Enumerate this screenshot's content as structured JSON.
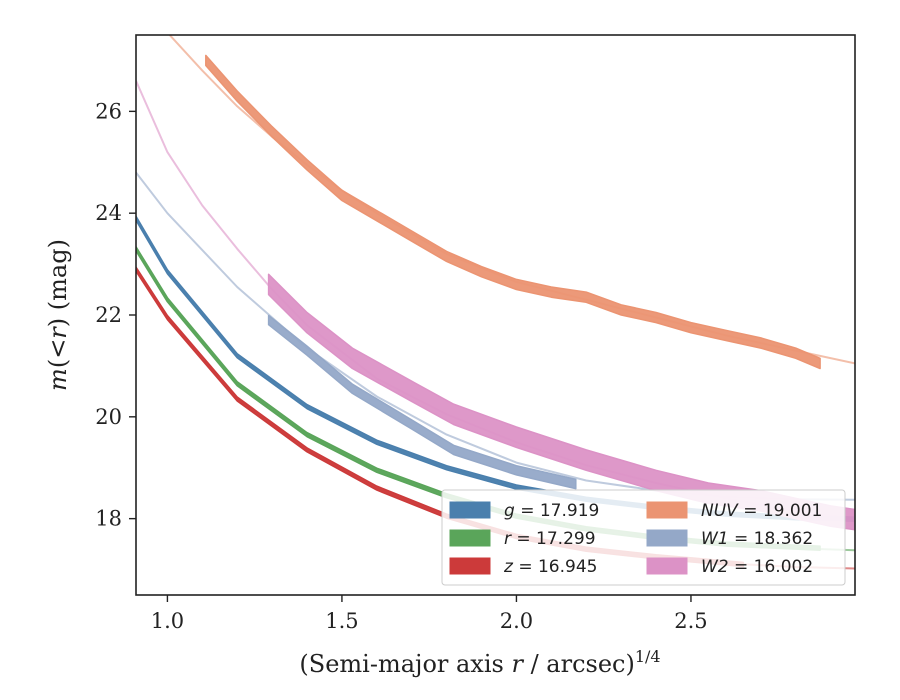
{
  "chart_data": {
    "type": "line",
    "title": "",
    "xlabel_main": "(Semi-major axis ",
    "xlabel_var": "r",
    "xlabel_rest": " / arcsec)",
    "xlabel_exp": "1/4",
    "ylabel_m": "m",
    "ylabel_mid": "(<",
    "ylabel_r": "r",
    "ylabel_rest": ") (mag)",
    "xlim": [
      0.91,
      2.97
    ],
    "ylim": [
      27.5,
      16.5
    ],
    "y_inverted": true,
    "xticks": [
      1.0,
      1.5,
      2.0,
      2.5
    ],
    "xtick_labels": [
      "1.0",
      "1.5",
      "2.0",
      "2.5"
    ],
    "yticks": [
      18,
      20,
      22,
      24,
      26
    ],
    "ytick_labels": [
      "18",
      "20",
      "22",
      "24",
      "26"
    ],
    "legend_position": "lower-right",
    "series": [
      {
        "key": "g",
        "legend_var": "g",
        "legend_value": " = 17.919",
        "color": "#4a7fad",
        "model": [
          [
            0.91,
            23.9
          ],
          [
            1.0,
            22.85
          ],
          [
            1.2,
            21.2
          ],
          [
            1.4,
            20.2
          ],
          [
            1.6,
            19.5
          ],
          [
            1.8,
            19.0
          ],
          [
            2.0,
            18.62
          ],
          [
            2.2,
            18.38
          ],
          [
            2.4,
            18.22
          ],
          [
            2.6,
            18.09
          ],
          [
            2.8,
            18.02
          ],
          [
            2.97,
            17.99
          ]
        ],
        "data": [
          [
            0.91,
            23.9
          ],
          [
            1.0,
            22.85
          ],
          [
            1.2,
            21.2
          ],
          [
            1.4,
            20.2
          ],
          [
            1.6,
            19.5
          ],
          [
            1.8,
            19.0
          ],
          [
            2.0,
            18.62
          ],
          [
            2.2,
            18.38
          ],
          [
            2.4,
            18.22
          ],
          [
            2.6,
            18.09
          ],
          [
            2.8,
            18.02
          ],
          [
            2.97,
            17.99
          ]
        ],
        "band_width": 0.08
      },
      {
        "key": "r",
        "legend_var": "r",
        "legend_value": " = 17.299",
        "color": "#5aa55a",
        "model": [
          [
            0.91,
            23.3
          ],
          [
            1.0,
            22.3
          ],
          [
            1.2,
            20.65
          ],
          [
            1.4,
            19.65
          ],
          [
            1.6,
            18.95
          ],
          [
            1.8,
            18.45
          ],
          [
            2.0,
            18.05
          ],
          [
            2.2,
            17.8
          ],
          [
            2.4,
            17.63
          ],
          [
            2.6,
            17.5
          ],
          [
            2.8,
            17.42
          ],
          [
            2.97,
            17.38
          ]
        ],
        "data": [
          [
            0.91,
            23.3
          ],
          [
            1.0,
            22.3
          ],
          [
            1.2,
            20.65
          ],
          [
            1.4,
            19.65
          ],
          [
            1.6,
            18.95
          ],
          [
            1.8,
            18.45
          ],
          [
            2.0,
            18.05
          ],
          [
            2.2,
            17.8
          ],
          [
            2.4,
            17.63
          ],
          [
            2.6,
            17.5
          ],
          [
            2.87,
            17.42
          ]
        ],
        "band_width": 0.08
      },
      {
        "key": "z",
        "legend_var": "z",
        "legend_value": " = 16.945",
        "color": "#cc3a3a",
        "model": [
          [
            0.91,
            22.9
          ],
          [
            1.0,
            21.95
          ],
          [
            1.2,
            20.35
          ],
          [
            1.4,
            19.35
          ],
          [
            1.6,
            18.6
          ],
          [
            1.8,
            18.05
          ],
          [
            2.0,
            17.65
          ],
          [
            2.2,
            17.4
          ],
          [
            2.4,
            17.25
          ],
          [
            2.6,
            17.12
          ],
          [
            2.8,
            17.05
          ],
          [
            2.97,
            17.02
          ]
        ],
        "data": [
          [
            0.91,
            22.9
          ],
          [
            1.0,
            21.95
          ],
          [
            1.2,
            20.35
          ],
          [
            1.4,
            19.35
          ],
          [
            1.6,
            18.6
          ],
          [
            1.8,
            18.05
          ],
          [
            2.0,
            17.65
          ],
          [
            2.2,
            17.4
          ],
          [
            2.4,
            17.25
          ],
          [
            2.65,
            17.1
          ]
        ],
        "band_width": 0.08
      },
      {
        "key": "W1",
        "legend_var": "W1",
        "legend_value": " = 18.362",
        "color": "#94a8c8",
        "model": [
          [
            0.91,
            24.8
          ],
          [
            1.0,
            24.0
          ],
          [
            1.2,
            22.55
          ],
          [
            1.4,
            21.35
          ],
          [
            1.6,
            20.4
          ],
          [
            1.8,
            19.65
          ],
          [
            2.0,
            19.1
          ],
          [
            2.2,
            18.75
          ],
          [
            2.4,
            18.55
          ],
          [
            2.6,
            18.43
          ],
          [
            2.8,
            18.38
          ],
          [
            2.97,
            18.37
          ]
        ],
        "data": [
          [
            1.29,
            21.9
          ],
          [
            1.4,
            21.3
          ],
          [
            1.53,
            20.55
          ],
          [
            1.7,
            19.85
          ],
          [
            1.82,
            19.35
          ],
          [
            2.0,
            18.95
          ],
          [
            2.17,
            18.68
          ]
        ],
        "band_width": 0.18
      },
      {
        "key": "W2",
        "legend_var": "W2",
        "legend_value": " = 16.002",
        "color": "#dc92c6",
        "model": [
          [
            0.91,
            26.6
          ],
          [
            1.0,
            25.2
          ],
          [
            1.1,
            24.15
          ],
          [
            1.2,
            23.3
          ],
          [
            1.3,
            22.5
          ],
          [
            1.4,
            21.8
          ],
          [
            1.6,
            20.75
          ],
          [
            1.8,
            20.05
          ],
          [
            2.0,
            19.5
          ],
          [
            2.2,
            19.05
          ],
          [
            2.4,
            18.7
          ],
          [
            2.6,
            18.4
          ],
          [
            2.8,
            18.15
          ],
          [
            2.97,
            18.0
          ]
        ],
        "data": [
          [
            1.29,
            22.6
          ],
          [
            1.4,
            21.85
          ],
          [
            1.53,
            21.15
          ],
          [
            1.7,
            20.5
          ],
          [
            1.82,
            20.05
          ],
          [
            2.0,
            19.6
          ],
          [
            2.2,
            19.15
          ],
          [
            2.4,
            18.75
          ],
          [
            2.55,
            18.5
          ],
          [
            2.7,
            18.35
          ],
          [
            2.8,
            18.2
          ],
          [
            2.9,
            18.05
          ],
          [
            2.97,
            17.98
          ]
        ],
        "band_width": 0.4
      },
      {
        "key": "NUV",
        "legend_var": "NUV",
        "legend_value": " = 19.001",
        "color": "#eb9472",
        "model": [
          [
            0.91,
            28.4
          ],
          [
            1.0,
            27.55
          ],
          [
            1.1,
            26.8
          ],
          [
            1.2,
            26.1
          ],
          [
            1.3,
            25.5
          ],
          [
            1.4,
            24.95
          ],
          [
            1.5,
            24.45
          ],
          [
            1.6,
            24.0
          ],
          [
            1.7,
            23.6
          ],
          [
            1.8,
            23.2
          ],
          [
            2.0,
            22.65
          ],
          [
            2.2,
            22.3
          ],
          [
            2.4,
            21.95
          ],
          [
            2.6,
            21.6
          ],
          [
            2.8,
            21.3
          ],
          [
            2.97,
            21.05
          ]
        ],
        "data": [
          [
            1.11,
            27.0
          ],
          [
            1.2,
            26.3
          ],
          [
            1.3,
            25.6
          ],
          [
            1.4,
            24.95
          ],
          [
            1.5,
            24.35
          ],
          [
            1.6,
            23.95
          ],
          [
            1.7,
            23.55
          ],
          [
            1.8,
            23.15
          ],
          [
            1.9,
            22.85
          ],
          [
            2.0,
            22.6
          ],
          [
            2.1,
            22.45
          ],
          [
            2.2,
            22.35
          ],
          [
            2.3,
            22.1
          ],
          [
            2.4,
            21.95
          ],
          [
            2.5,
            21.75
          ],
          [
            2.6,
            21.6
          ],
          [
            2.7,
            21.45
          ],
          [
            2.8,
            21.25
          ],
          [
            2.87,
            21.05
          ]
        ],
        "band_width": 0.2
      }
    ],
    "legend_columns": [
      [
        "g",
        "r",
        "z"
      ],
      [
        "NUV",
        "W1",
        "W2"
      ]
    ]
  }
}
